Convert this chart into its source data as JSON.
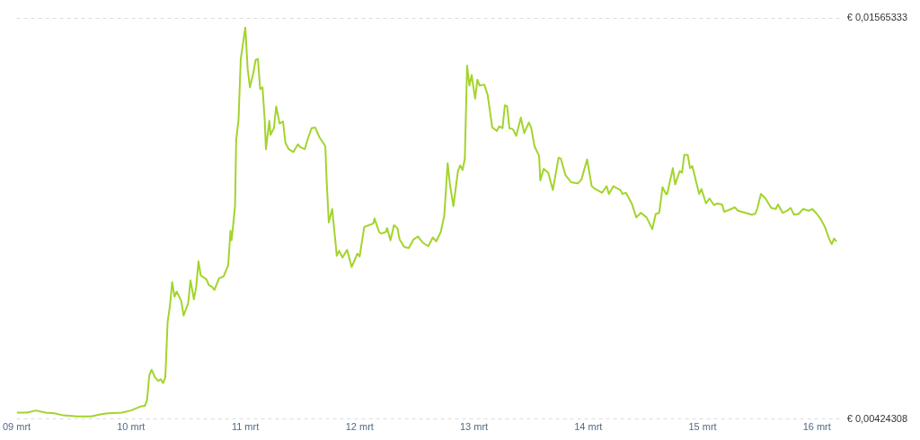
{
  "chart_data": {
    "type": "line",
    "x": [
      9.0,
      9.09,
      9.17,
      9.25,
      9.33,
      9.41,
      9.53,
      9.65,
      9.73,
      9.8,
      9.92,
      10.0,
      10.08,
      10.12,
      10.14,
      10.16,
      10.18,
      10.21,
      10.24,
      10.26,
      10.28,
      10.3,
      10.32,
      10.34,
      10.36,
      10.38,
      10.4,
      10.44,
      10.46,
      10.5,
      10.52,
      10.55,
      10.57,
      10.59,
      10.61,
      10.66,
      10.68,
      10.71,
      10.73,
      10.77,
      10.81,
      10.85,
      10.87,
      10.88,
      10.91,
      10.92,
      10.94,
      10.96,
      11.0,
      11.02,
      11.04,
      11.07,
      11.09,
      11.11,
      11.13,
      11.15,
      11.17,
      11.18,
      11.21,
      11.22,
      11.25,
      11.27,
      11.3,
      11.33,
      11.35,
      11.38,
      11.42,
      11.46,
      11.48,
      11.52,
      11.55,
      11.58,
      11.61,
      11.65,
      11.68,
      11.7,
      11.71,
      11.73,
      11.76,
      11.8,
      11.82,
      11.85,
      11.89,
      11.93,
      11.98,
      12.0,
      12.04,
      12.12,
      12.13,
      12.17,
      12.19,
      12.23,
      12.24,
      12.27,
      12.3,
      12.33,
      12.35,
      12.39,
      12.43,
      12.47,
      12.51,
      12.55,
      12.6,
      12.64,
      12.67,
      12.71,
      12.74,
      12.77,
      12.79,
      12.82,
      12.86,
      12.88,
      12.9,
      12.92,
      12.94,
      12.96,
      12.98,
      13.01,
      13.03,
      13.05,
      13.09,
      13.12,
      13.16,
      13.2,
      13.22,
      13.25,
      13.27,
      13.29,
      13.31,
      13.34,
      13.37,
      13.41,
      13.44,
      13.48,
      13.5,
      13.53,
      13.57,
      13.58,
      13.61,
      13.65,
      13.69,
      13.74,
      13.76,
      13.8,
      13.85,
      13.91,
      13.94,
      13.99,
      14.03,
      14.06,
      14.12,
      14.16,
      14.18,
      14.22,
      14.28,
      14.3,
      14.33,
      14.38,
      14.42,
      14.46,
      14.51,
      14.56,
      14.59,
      14.62,
      14.65,
      14.68,
      14.69,
      14.74,
      14.76,
      14.8,
      14.82,
      14.84,
      14.87,
      14.89,
      14.91,
      14.97,
      14.99,
      15.03,
      15.06,
      15.1,
      15.13,
      15.17,
      15.19,
      15.25,
      15.28,
      15.31,
      15.43,
      15.46,
      15.48,
      15.51,
      15.55,
      15.6,
      15.64,
      15.66,
      15.7,
      15.74,
      15.77,
      15.8,
      15.84,
      15.88,
      15.93,
      15.96,
      16.0,
      16.03,
      16.07,
      16.11,
      16.13,
      16.15,
      16.17
    ],
    "values": [
      0.00443,
      0.00443,
      0.00449,
      0.00443,
      0.00441,
      0.00435,
      0.00432,
      0.00432,
      0.00438,
      0.00441,
      0.00443,
      0.00449,
      0.0046,
      0.00462,
      0.00478,
      0.00549,
      0.00565,
      0.00543,
      0.00533,
      0.00538,
      0.00527,
      0.00543,
      0.007,
      0.00746,
      0.00814,
      0.00773,
      0.00787,
      0.0076,
      0.00719,
      0.00754,
      0.00819,
      0.00765,
      0.008,
      0.00873,
      0.00833,
      0.00822,
      0.00806,
      0.008,
      0.00792,
      0.00825,
      0.0083,
      0.00862,
      0.0096,
      0.00933,
      0.0103,
      0.01219,
      0.01273,
      0.01449,
      0.01538,
      0.01422,
      0.01368,
      0.01409,
      0.01446,
      0.01449,
      0.01363,
      0.01368,
      0.01273,
      0.01192,
      0.01273,
      0.01233,
      0.01252,
      0.01314,
      0.01265,
      0.01271,
      0.01211,
      0.01192,
      0.01184,
      0.01206,
      0.01198,
      0.01192,
      0.01225,
      0.01252,
      0.01254,
      0.01225,
      0.01211,
      0.012,
      0.01111,
      0.00984,
      0.01022,
      0.00889,
      0.00903,
      0.00884,
      0.00906,
      0.00857,
      0.00895,
      0.00887,
      0.00971,
      0.00981,
      0.00995,
      0.00957,
      0.00952,
      0.00957,
      0.00968,
      0.00933,
      0.00976,
      0.00968,
      0.00935,
      0.00914,
      0.00911,
      0.00935,
      0.00944,
      0.00927,
      0.00916,
      0.00941,
      0.0093,
      0.00957,
      0.01003,
      0.01152,
      0.01092,
      0.0103,
      0.0113,
      0.01146,
      0.01133,
      0.01165,
      0.0143,
      0.01373,
      0.01403,
      0.01336,
      0.0139,
      0.01373,
      0.01376,
      0.01346,
      0.01254,
      0.01244,
      0.01257,
      0.01252,
      0.01317,
      0.01314,
      0.01252,
      0.01249,
      0.0123,
      0.01282,
      0.01238,
      0.01268,
      0.01254,
      0.012,
      0.01173,
      0.01103,
      0.01136,
      0.01125,
      0.01076,
      0.01168,
      0.01165,
      0.01119,
      0.01098,
      0.01095,
      0.01106,
      0.01163,
      0.01087,
      0.01079,
      0.01068,
      0.01087,
      0.01065,
      0.01087,
      0.01076,
      0.01065,
      0.01068,
      0.01038,
      0.00998,
      0.01011,
      0.00998,
      0.00965,
      0.01008,
      0.01011,
      0.01084,
      0.01065,
      0.01065,
      0.01138,
      0.01092,
      0.0113,
      0.01125,
      0.01176,
      0.01176,
      0.01138,
      0.01144,
      0.01065,
      0.01079,
      0.01038,
      0.01052,
      0.01033,
      0.01038,
      0.01035,
      0.01014,
      0.01022,
      0.01027,
      0.01017,
      0.01006,
      0.01008,
      0.01025,
      0.01065,
      0.01052,
      0.01025,
      0.01022,
      0.01035,
      0.01011,
      0.01017,
      0.01025,
      0.01006,
      0.01008,
      0.01022,
      0.01017,
      0.01022,
      0.01008,
      0.00995,
      0.00971,
      0.00935,
      0.00922,
      0.00938,
      0.0093
    ],
    "color": "#a3d42c",
    "xlim": [
      9,
      16.2
    ],
    "xticks": [
      {
        "value": 9,
        "label": "09 mrt"
      },
      {
        "value": 10,
        "label": "10 mrt"
      },
      {
        "value": 11,
        "label": "11 mrt"
      },
      {
        "value": 12,
        "label": "12 mrt"
      },
      {
        "value": 13,
        "label": "13 mrt"
      },
      {
        "value": 14,
        "label": "14 mrt"
      },
      {
        "value": 15,
        "label": "15 mrt"
      },
      {
        "value": 16,
        "label": "16 mrt"
      }
    ],
    "ylim": [
      0.00424308,
      0.01565333
    ],
    "yticks": [
      {
        "value": 0.00424308,
        "label": "€ 0,00424308"
      },
      {
        "value": 0.01565333,
        "label": "€ 0,01565333"
      }
    ],
    "grid": "y"
  }
}
